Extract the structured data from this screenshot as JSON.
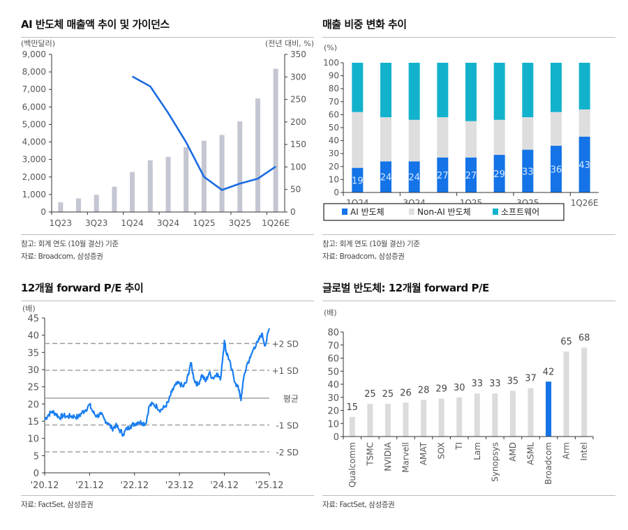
{
  "panels": {
    "p1": {
      "title": "AI 반도체 매출액 추이 및 가이던스",
      "notes": [
        "참고: 회계 연도 (10월 결산) 기준",
        "자료: Broadcom, 삼성증권"
      ]
    },
    "p2": {
      "title": "매출 비중 변화 추이",
      "notes": [
        "참고: 회계 연도 (10월 결산) 기준",
        "자료: Broadcom, 삼성증권"
      ]
    },
    "p3": {
      "title": "12개월 forward P/E 추이",
      "notes": [
        "자료: FactSet, 삼성증권"
      ]
    },
    "p4": {
      "title": "글로벌 반도체: 12개월 forward P/E",
      "notes": [
        "자료: FactSet, 삼성증권"
      ]
    }
  },
  "chart_data": [
    {
      "id": "ai-revenue",
      "type": "bar",
      "title": "AI 반도체 매출액 추이 및 가이던스",
      "ylabel": "(백만달러)",
      "y2label": "(전년 대비, %)",
      "categories": [
        "1Q23",
        "2Q23",
        "3Q23",
        "4Q23",
        "1Q24",
        "2Q24",
        "3Q24",
        "4Q24",
        "1Q25",
        "2Q25",
        "3Q25",
        "4Q25",
        "1Q26E"
      ],
      "tick_labels": [
        "1Q23",
        "3Q23",
        "1Q24",
        "3Q24",
        "1Q25",
        "3Q25",
        "1Q26E"
      ],
      "ylim": [
        0,
        9000
      ],
      "yticks": [
        "0",
        "1,000",
        "2,000",
        "3,000",
        "4,000",
        "5,000",
        "6,000",
        "7,000",
        "8,000",
        "9,000"
      ],
      "y2lim": [
        0,
        350
      ],
      "y2ticks": [
        "0",
        "50",
        "100",
        "150",
        "200",
        "250",
        "300",
        "350"
      ],
      "series": [
        {
          "name": "AI 반도체 매출액",
          "axis": "left",
          "kind": "bar",
          "color": "#c4c6d2",
          "values": [
            550,
            780,
            980,
            1450,
            2280,
            2950,
            3150,
            3700,
            4070,
            4400,
            5180,
            6480,
            8180
          ]
        },
        {
          "name": "전년 대비 성장률",
          "axis": "right",
          "kind": "line",
          "color": "#1a6ae0",
          "values": [
            null,
            null,
            null,
            null,
            301,
            279,
            220,
            155,
            78,
            49,
            63,
            74,
            101
          ]
        }
      ]
    },
    {
      "id": "revenue-mix",
      "type": "bar",
      "stacked": true,
      "title": "매출 비중 변화 추이",
      "ylabel": "(%)",
      "categories": [
        "1Q24",
        "2Q24",
        "3Q24",
        "4Q24",
        "1Q25",
        "2Q25",
        "3Q25",
        "4Q25",
        "1Q26E"
      ],
      "tick_labels": [
        "1Q24",
        "3Q24",
        "1Q25",
        "3Q25",
        "1Q26E"
      ],
      "ylim": [
        0,
        100
      ],
      "yticks": [
        "0",
        "10",
        "20",
        "30",
        "40",
        "50",
        "60",
        "70",
        "80",
        "90",
        "100"
      ],
      "legend_position": "bottom",
      "series": [
        {
          "name": "AI 반도체",
          "color": "#1473e6",
          "values": [
            19,
            24,
            24,
            27,
            27,
            29,
            33,
            36,
            43
          ]
        },
        {
          "name": "Non-AI 반도체",
          "color": "#dedede",
          "values": [
            43,
            34,
            32,
            31,
            28,
            27,
            25,
            26,
            21
          ]
        },
        {
          "name": "소프트웨어",
          "color": "#13b2cc",
          "values": [
            38,
            42,
            44,
            42,
            45,
            44,
            42,
            38,
            36
          ]
        }
      ],
      "data_labels": [
        "19",
        "24",
        "24",
        "27",
        "27",
        "29",
        "33",
        "36",
        "43"
      ]
    },
    {
      "id": "forward-pe",
      "type": "line",
      "title": "12개월 forward P/E 추이",
      "ylabel": "(배)",
      "ylim": [
        0,
        45
      ],
      "yticks": [
        "0",
        "5",
        "10",
        "15",
        "20",
        "25",
        "30",
        "35",
        "40",
        "45"
      ],
      "xlim": [
        2020.92,
        2025.92
      ],
      "xticks": [
        "'20.12",
        "'21.12",
        "'22.12",
        "'23.12",
        "'24.12",
        "'25.12"
      ],
      "color": "#1a7ef0",
      "reference_lines": [
        {
          "label": "+2 SD",
          "value": 37.6,
          "style": "dashed"
        },
        {
          "label": "+1 SD",
          "value": 29.8,
          "style": "dashed"
        },
        {
          "label": "평균",
          "value": 21.7,
          "style": "solid"
        },
        {
          "label": "-1 SD",
          "value": 13.9,
          "style": "dashed"
        },
        {
          "label": "-2 SD",
          "value": 6.1,
          "style": "dashed"
        }
      ],
      "x": [
        2020.92,
        2021.0,
        2021.08,
        2021.17,
        2021.25,
        2021.33,
        2021.42,
        2021.5,
        2021.58,
        2021.67,
        2021.75,
        2021.83,
        2021.92,
        2022.0,
        2022.08,
        2022.17,
        2022.25,
        2022.33,
        2022.42,
        2022.5,
        2022.58,
        2022.67,
        2022.75,
        2022.83,
        2022.92,
        2023.0,
        2023.08,
        2023.17,
        2023.25,
        2023.33,
        2023.42,
        2023.5,
        2023.58,
        2023.67,
        2023.75,
        2023.83,
        2023.92,
        2024.0,
        2024.08,
        2024.17,
        2024.25,
        2024.33,
        2024.42,
        2024.5,
        2024.58,
        2024.67,
        2024.75,
        2024.83,
        2024.92,
        2024.96,
        2025.0,
        2025.08,
        2025.17,
        2025.25,
        2025.29,
        2025.33,
        2025.42,
        2025.5,
        2025.58,
        2025.67,
        2025.75,
        2025.83,
        2025.92
      ],
      "y": [
        15.5,
        16.8,
        17.8,
        17.2,
        16.0,
        16.7,
        16.3,
        16.5,
        16.4,
        16.2,
        17.5,
        18.3,
        19.8,
        17.5,
        16.5,
        17.0,
        15.5,
        14.5,
        12.8,
        13.8,
        12.5,
        11.2,
        12.8,
        13.6,
        14.2,
        14.8,
        14.6,
        14.3,
        19.5,
        20.0,
        19.2,
        18.2,
        19.0,
        20.5,
        23.5,
        25.5,
        26.0,
        25.0,
        26.5,
        32.0,
        27.0,
        25.5,
        28.5,
        26.5,
        29.0,
        27.5,
        29.0,
        27.0,
        38.5,
        35.0,
        34.0,
        30.0,
        26.0,
        24.0,
        21.0,
        26.0,
        31.5,
        33.5,
        36.5,
        38.0,
        40.5,
        37.0,
        42.0
      ]
    },
    {
      "id": "global-semis-pe",
      "type": "bar",
      "title": "글로벌 반도체: 12개월 forward P/E",
      "ylabel": "(배)",
      "ylim": [
        0,
        80
      ],
      "yticks": [
        "0",
        "10",
        "20",
        "30",
        "40",
        "50",
        "60",
        "70",
        "80"
      ],
      "categories": [
        "Qualcomm",
        "TSMC",
        "NVIDIA",
        "Marvell",
        "AMAT",
        "SOX",
        "TI",
        "Lam",
        "Synopsys",
        "AMD",
        "ASML",
        "Broadcom",
        "Arm",
        "Intel"
      ],
      "values": [
        15,
        25,
        25,
        26,
        28,
        29,
        30,
        33,
        33,
        35,
        37,
        42,
        65,
        68
      ],
      "data_labels": [
        "15",
        "25",
        "25",
        "26",
        "28",
        "29",
        "30",
        "33",
        "33",
        "35",
        "37",
        "42",
        "65",
        "68"
      ],
      "highlight": "Broadcom",
      "color": "#dcdcdc",
      "highlight_color": "#1473e6"
    }
  ]
}
